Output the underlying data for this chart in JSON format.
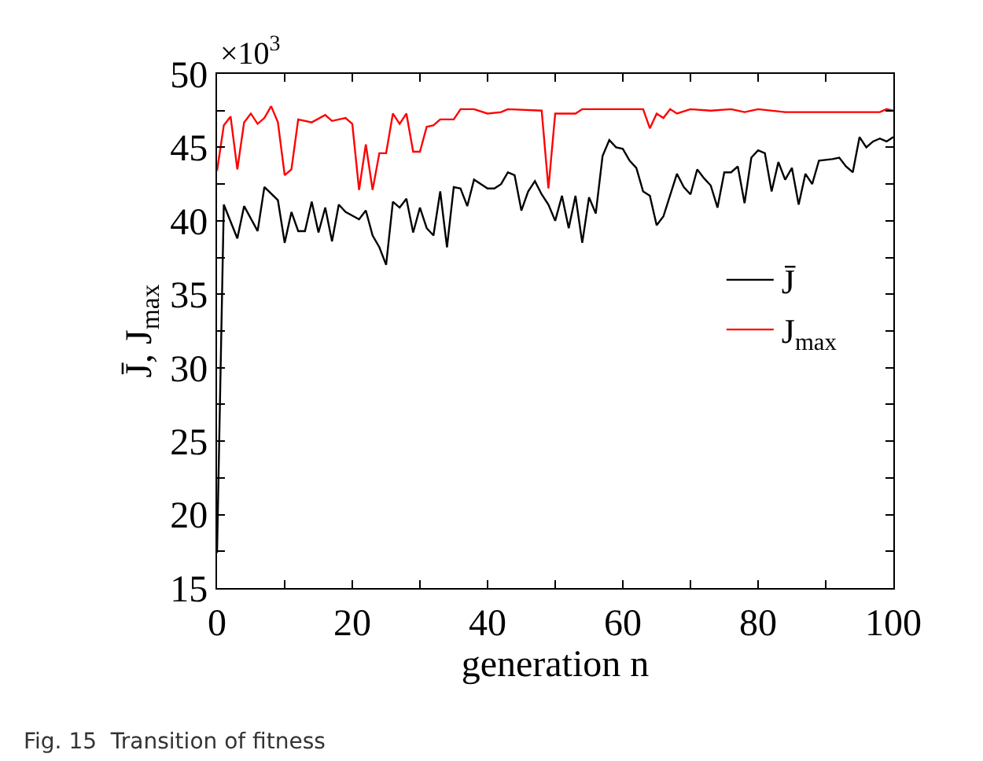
{
  "chart_data": {
    "type": "line",
    "xlabel": "generation n",
    "ylabel": "J̄, J$_{max}$",
    "annotations": [
      "×10$^{3}$",
      "Fig. 15  Transition of fitness"
    ],
    "series": [
      {
        "name": "J̄",
        "color": "#000000",
        "x": [
          0,
          1,
          3,
          4,
          6,
          7,
          9,
          10,
          11,
          12,
          13,
          14,
          15,
          16,
          17,
          18,
          19,
          21,
          22,
          23,
          24,
          25,
          26,
          27,
          28,
          29,
          30,
          31,
          32,
          33,
          34,
          35,
          36,
          37,
          38,
          40,
          41,
          42,
          43,
          44,
          45,
          46,
          47,
          48,
          49,
          50,
          51,
          52,
          53,
          54,
          55,
          56,
          57,
          58,
          59,
          60,
          61,
          62,
          63,
          64,
          65,
          66,
          68,
          69,
          70,
          71,
          72,
          73,
          74,
          75,
          76,
          77,
          78,
          79,
          80,
          81,
          82,
          83,
          84,
          85,
          86,
          87,
          88,
          89,
          91,
          92,
          93,
          94,
          95,
          96,
          97,
          98,
          99,
          100
        ],
        "values": [
          17.4,
          41.1,
          38.8,
          41.0,
          39.3,
          42.3,
          41.4,
          38.5,
          40.6,
          39.3,
          39.3,
          41.3,
          39.2,
          40.9,
          38.6,
          41.1,
          40.6,
          40.1,
          40.7,
          39.0,
          38.2,
          37.0,
          41.3,
          40.9,
          41.5,
          39.2,
          40.9,
          39.5,
          39.0,
          42.0,
          38.2,
          42.3,
          42.2,
          41.0,
          42.8,
          42.2,
          42.2,
          42.5,
          43.3,
          43.1,
          40.7,
          42.0,
          42.7,
          41.8,
          41.1,
          40.0,
          41.7,
          39.5,
          41.7,
          38.5,
          41.6,
          40.5,
          44.4,
          45.5,
          45.0,
          44.9,
          44.1,
          43.6,
          42.0,
          41.7,
          39.7,
          40.3,
          43.2,
          42.3,
          41.8,
          43.5,
          42.9,
          42.4,
          40.9,
          43.3,
          43.3,
          43.7,
          41.2,
          44.3,
          44.8,
          44.6,
          42.0,
          44.0,
          42.8,
          43.6,
          41.1,
          43.2,
          42.5,
          44.1,
          44.2,
          44.3,
          43.7,
          43.3,
          45.7,
          45.0,
          45.4,
          45.6,
          45.4,
          45.7
        ]
      },
      {
        "name": "J$_{max}$",
        "color": "#ff0000",
        "x": [
          0,
          1,
          2,
          3,
          4,
          5,
          6,
          7,
          8,
          9,
          10,
          11,
          12,
          14,
          16,
          17,
          19,
          20,
          21,
          22,
          23,
          24,
          25,
          26,
          27,
          28,
          29,
          30,
          31,
          32,
          33,
          35,
          36,
          38,
          40,
          42,
          43,
          48,
          49,
          50,
          53,
          54,
          63,
          64,
          65,
          66,
          67,
          68,
          70,
          73,
          76,
          78,
          80,
          84,
          98,
          99,
          100
        ],
        "values": [
          43.4,
          46.5,
          47.1,
          43.5,
          46.7,
          47.3,
          46.6,
          47.0,
          47.8,
          46.7,
          43.1,
          43.5,
          46.9,
          46.7,
          47.2,
          46.8,
          47.0,
          46.6,
          42.1,
          45.2,
          42.1,
          44.6,
          44.6,
          47.3,
          46.6,
          47.3,
          44.7,
          44.7,
          46.4,
          46.5,
          46.9,
          46.9,
          47.6,
          47.6,
          47.3,
          47.4,
          47.6,
          47.5,
          42.2,
          47.3,
          47.3,
          47.6,
          47.6,
          46.3,
          47.3,
          47.0,
          47.6,
          47.3,
          47.6,
          47.5,
          47.6,
          47.4,
          47.6,
          47.4,
          47.4,
          47.6,
          47.5
        ]
      }
    ],
    "xlim": [
      0,
      100
    ],
    "xticks": [
      0,
      {
        "value": 10,
        "label": null
      },
      20,
      {
        "value": 30,
        "label": null
      },
      40,
      {
        "value": 50,
        "label": null
      },
      60,
      {
        "value": 70,
        "label": null
      },
      80,
      {
        "value": 90,
        "label": null
      },
      100
    ],
    "ylim": [
      15,
      50
    ],
    "yticks": [
      15,
      {
        "value": 17.5,
        "label": null
      },
      20,
      {
        "value": 22.5,
        "label": null
      },
      25,
      {
        "value": 27.5,
        "label": null
      },
      30,
      {
        "value": 32.5,
        "label": null
      },
      35,
      {
        "value": 37.5,
        "label": null
      },
      40,
      {
        "value": 42.5,
        "label": null
      },
      45,
      {
        "value": 47.5,
        "label": null
      },
      50
    ],
    "legend": "right",
    "marker": "none",
    "line_style": "solid"
  }
}
